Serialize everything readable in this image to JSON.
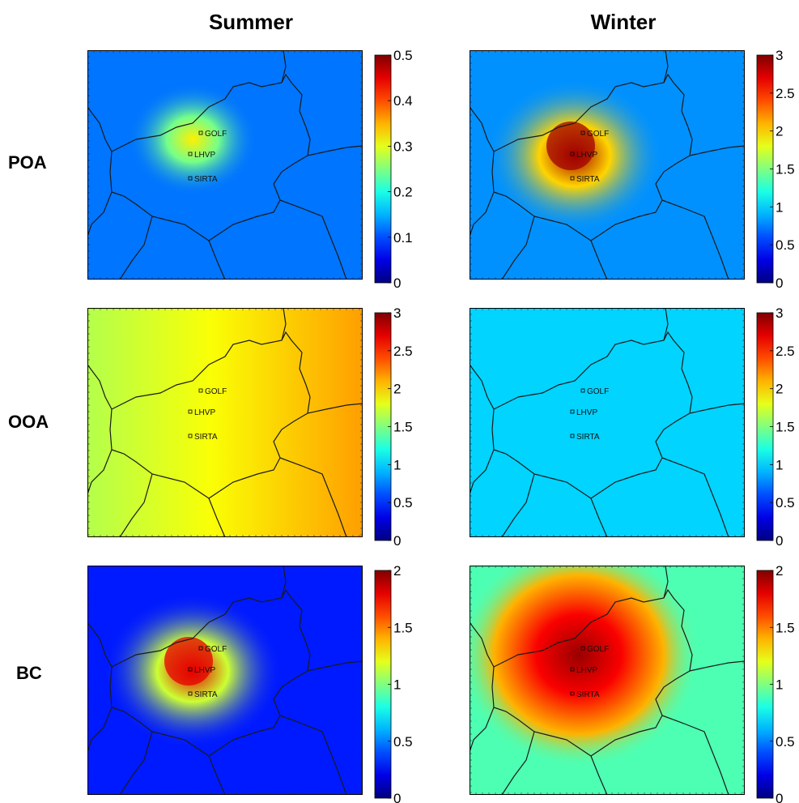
{
  "columns": [
    "Summer",
    "Winter"
  ],
  "rows": [
    "POA",
    "OOA",
    "BC"
  ],
  "sites": [
    "GOLF",
    "LHVP",
    "SIRTA"
  ],
  "panels": [
    {
      "row": "POA",
      "season": "Summer",
      "max": 0.5,
      "ticks": [
        "0",
        "0.1",
        "0.2",
        "0.3",
        "0.4",
        "0.5"
      ],
      "background_level": 0.12,
      "hotspot_level": 0.32,
      "pattern": "low"
    },
    {
      "row": "POA",
      "season": "Winter",
      "max": 3,
      "ticks": [
        "0",
        "0.5",
        "1",
        "1.5",
        "2",
        "2.5",
        "3"
      ],
      "background_level": 0.8,
      "hotspot_level": 2.9,
      "pattern": "hotspot"
    },
    {
      "row": "OOA",
      "season": "Summer",
      "max": 3,
      "ticks": [
        "0",
        "0.5",
        "1",
        "1.5",
        "2",
        "2.5",
        "3"
      ],
      "background_level": 1.7,
      "hotspot_level": 2.2,
      "pattern": "gradient"
    },
    {
      "row": "OOA",
      "season": "Winter",
      "max": 3,
      "ticks": [
        "0",
        "0.5",
        "1",
        "1.5",
        "2",
        "2.5",
        "3"
      ],
      "background_level": 1.0,
      "hotspot_level": 1.05,
      "pattern": "uniform"
    },
    {
      "row": "BC",
      "season": "Summer",
      "max": 2,
      "ticks": [
        "0",
        "0.5",
        "1",
        "1.5",
        "2"
      ],
      "background_level": 0.3,
      "hotspot_level": 1.8,
      "pattern": "hotspot"
    },
    {
      "row": "BC",
      "season": "Winter",
      "max": 2,
      "ticks": [
        "0",
        "0.5",
        "1",
        "1.5",
        "2"
      ],
      "background_level": 0.9,
      "hotspot_level": 1.95,
      "pattern": "broad"
    }
  ],
  "colors": {
    "jet_low": "#00008f",
    "jet_mid": "#80ff80",
    "jet_high": "#800000",
    "boundary": "#1a1a1a"
  }
}
